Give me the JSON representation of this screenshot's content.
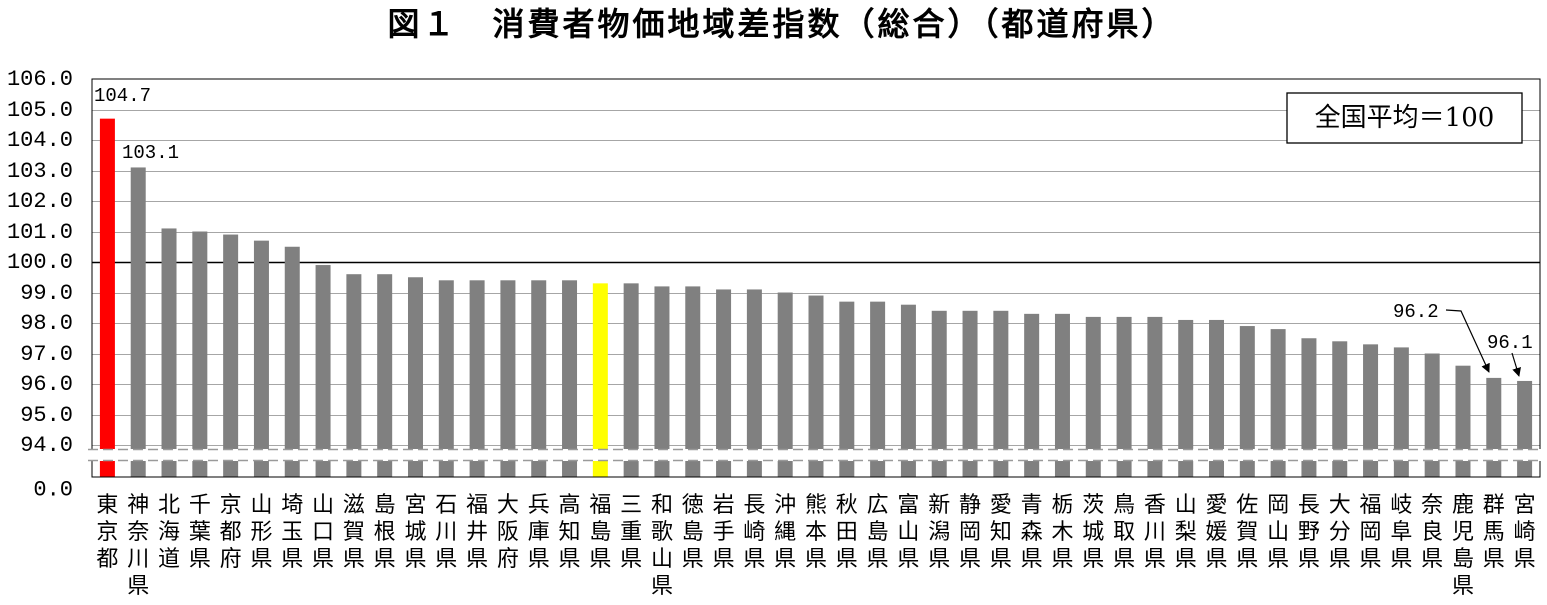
{
  "chart_data": {
    "type": "bar",
    "title": "図１　消費者物価地域差指数（総合）（都道府県）",
    "categories": [
      "東京都",
      "神奈川県",
      "北海道",
      "千葉県",
      "京都府",
      "山形県",
      "埼玉県",
      "山口県",
      "滋賀県",
      "島根県",
      "宮城県",
      "石川県",
      "福井県",
      "大阪府",
      "兵庫県",
      "高知県",
      "福島県",
      "三重県",
      "和歌山県",
      "徳島県",
      "岩手県",
      "長崎県",
      "沖縄県",
      "熊本県",
      "秋田県",
      "広島県",
      "富山県",
      "新潟県",
      "静岡県",
      "愛知県",
      "青森県",
      "栃木県",
      "茨城県",
      "鳥取県",
      "香川県",
      "山梨県",
      "愛媛県",
      "佐賀県",
      "岡山県",
      "長野県",
      "大分県",
      "福岡県",
      "岐阜県",
      "奈良県",
      "鹿児島県",
      "群馬県",
      "宮崎県"
    ],
    "values": [
      104.7,
      103.1,
      101.1,
      101.0,
      100.9,
      100.7,
      100.5,
      99.9,
      99.6,
      99.6,
      99.5,
      99.4,
      99.4,
      99.4,
      99.4,
      99.4,
      99.3,
      99.3,
      99.2,
      99.2,
      99.1,
      99.1,
      99.0,
      98.9,
      98.7,
      98.7,
      98.6,
      98.4,
      98.4,
      98.4,
      98.3,
      98.3,
      98.2,
      98.2,
      98.2,
      98.1,
      98.1,
      97.9,
      97.8,
      97.5,
      97.4,
      97.3,
      97.2,
      97.0,
      96.6,
      96.2,
      96.1
    ],
    "ylim": [
      94,
      106
    ],
    "yticks": [
      "106.0",
      "105.0",
      "104.0",
      "103.0",
      "102.0",
      "101.0",
      "100.0",
      "99.0",
      "98.0",
      "97.0",
      "96.0",
      "95.0",
      "94.0"
    ],
    "axis_break": {
      "baseline": "0.0"
    },
    "reference_line": 100,
    "grid": true,
    "note": "全国平均＝100",
    "data_labels": {
      "東京都": "104.7",
      "神奈川県": "103.1",
      "群馬県": "96.2",
      "宮崎県": "96.1"
    },
    "colors": {
      "bar": "#808080",
      "highlight": {
        "東京都": "#ff0000",
        "福島県": "#ffff00"
      },
      "reference_line": "#000000",
      "grid": "#a6a6a6",
      "frame": "#000000"
    }
  }
}
